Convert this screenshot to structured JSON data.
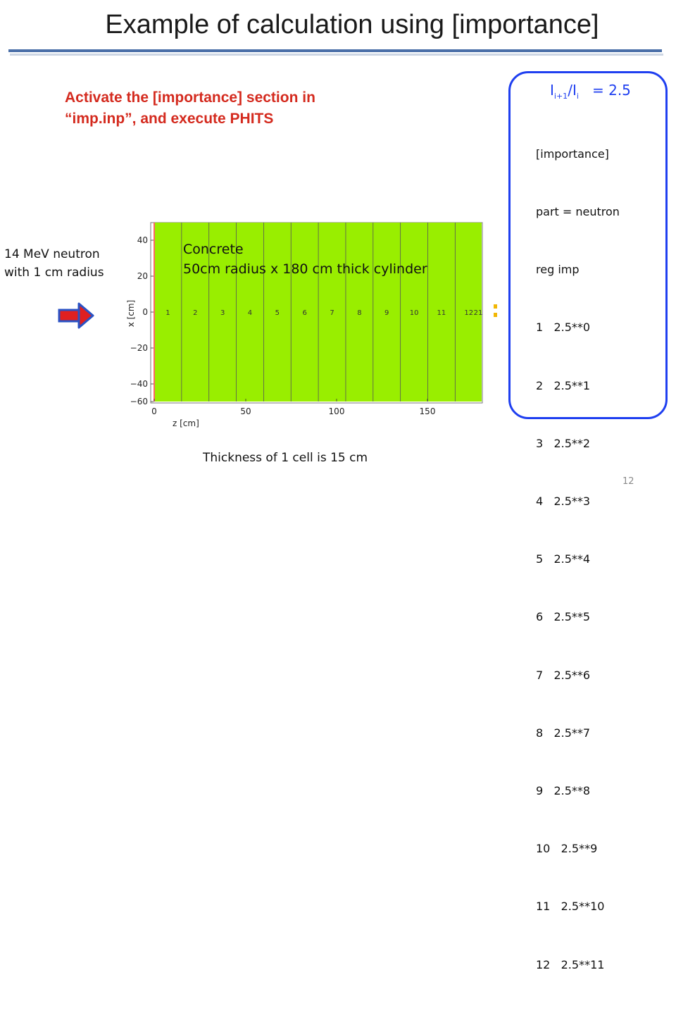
{
  "slide": {
    "title": "Example of calculation using [importance]",
    "page_number": "12"
  },
  "instruction": {
    "line1": "Activate the [importance] section in",
    "line2": "“imp.inp”, and execute PHITS"
  },
  "source_label": {
    "line1": "14 MeV neutron",
    "line2": "with 1 cm radius"
  },
  "material_label": {
    "line1": "Concrete",
    "line2": "50cm radius x 180 cm thick cylinder"
  },
  "cell_note": "Thickness of 1 cell is 15 cm",
  "importance_panel": {
    "ratio_base": "I",
    "ratio_num_sub": "i+1",
    "ratio_slash": "/",
    "ratio_den_sub": "i",
    "ratio_value": "= 2.5",
    "lines": [
      "[importance]",
      "part = neutron",
      "reg imp",
      "1   2.5**0",
      "2   2.5**1",
      "3   2.5**2",
      "4   2.5**3",
      "5   2.5**4",
      "6   2.5**5",
      "7   2.5**6",
      "8   2.5**7",
      "9   2.5**8",
      "10   2.5**9",
      "11   2.5**10",
      "12   2.5**11"
    ]
  },
  "geometry_plot": {
    "xlabel": "z [cm]",
    "ylabel": "x [cm]",
    "z_ticks": [
      "0",
      "50",
      "100",
      "150"
    ],
    "x_ticks": [
      "40",
      "20",
      "0",
      "−20",
      "−40",
      "−60"
    ],
    "cell_labels": [
      "1",
      "2",
      "3",
      "4",
      "5",
      "6",
      "7",
      "8",
      "9",
      "10",
      "11",
      "12",
      "21"
    ],
    "fill_color": "#99ee00",
    "border_color": "#ff6666"
  },
  "colors": {
    "accent_red": "#d42a1e",
    "panel_blue": "#1f3ff0",
    "title_rule": "#4a6fa8"
  }
}
